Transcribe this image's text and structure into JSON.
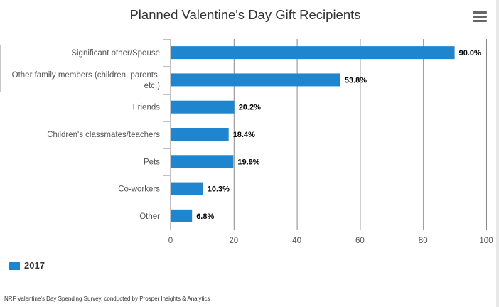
{
  "chart_data": {
    "type": "bar",
    "orientation": "horizontal",
    "title": "Planned Valentine's Day Gift Recipients",
    "categories": [
      [
        "Significant other/Spouse"
      ],
      [
        "Other family members (children, parents,",
        "etc.)"
      ],
      [
        "Friends"
      ],
      [
        "Children's classmates/teachers"
      ],
      [
        "Pets"
      ],
      [
        "Co-workers"
      ],
      [
        "Other"
      ]
    ],
    "series": [
      {
        "name": "2017",
        "color": "#1f85cf",
        "values": [
          90.0,
          53.8,
          20.2,
          18.4,
          19.9,
          10.3,
          6.8
        ],
        "value_labels": [
          "90.0%",
          "53.8%",
          "20.2%",
          "18.4%",
          "19.9%",
          "10.3%",
          "6.8%"
        ]
      }
    ],
    "xlim": [
      0,
      100
    ],
    "xticks": [
      0,
      20,
      40,
      60,
      80,
      100
    ],
    "xtick_labels": [
      "0",
      "20",
      "40",
      "60",
      "80",
      "100"
    ],
    "grid": true,
    "legend_position": "bottom-left",
    "xlabel": "",
    "ylabel": ""
  },
  "legend": {
    "label": "2017",
    "color": "#1f85cf"
  },
  "source": "NRF Valentine's Day Spending Survey, conducted by Prosper Insights & Analytics",
  "menu_icon": "hamburger-menu-icon"
}
